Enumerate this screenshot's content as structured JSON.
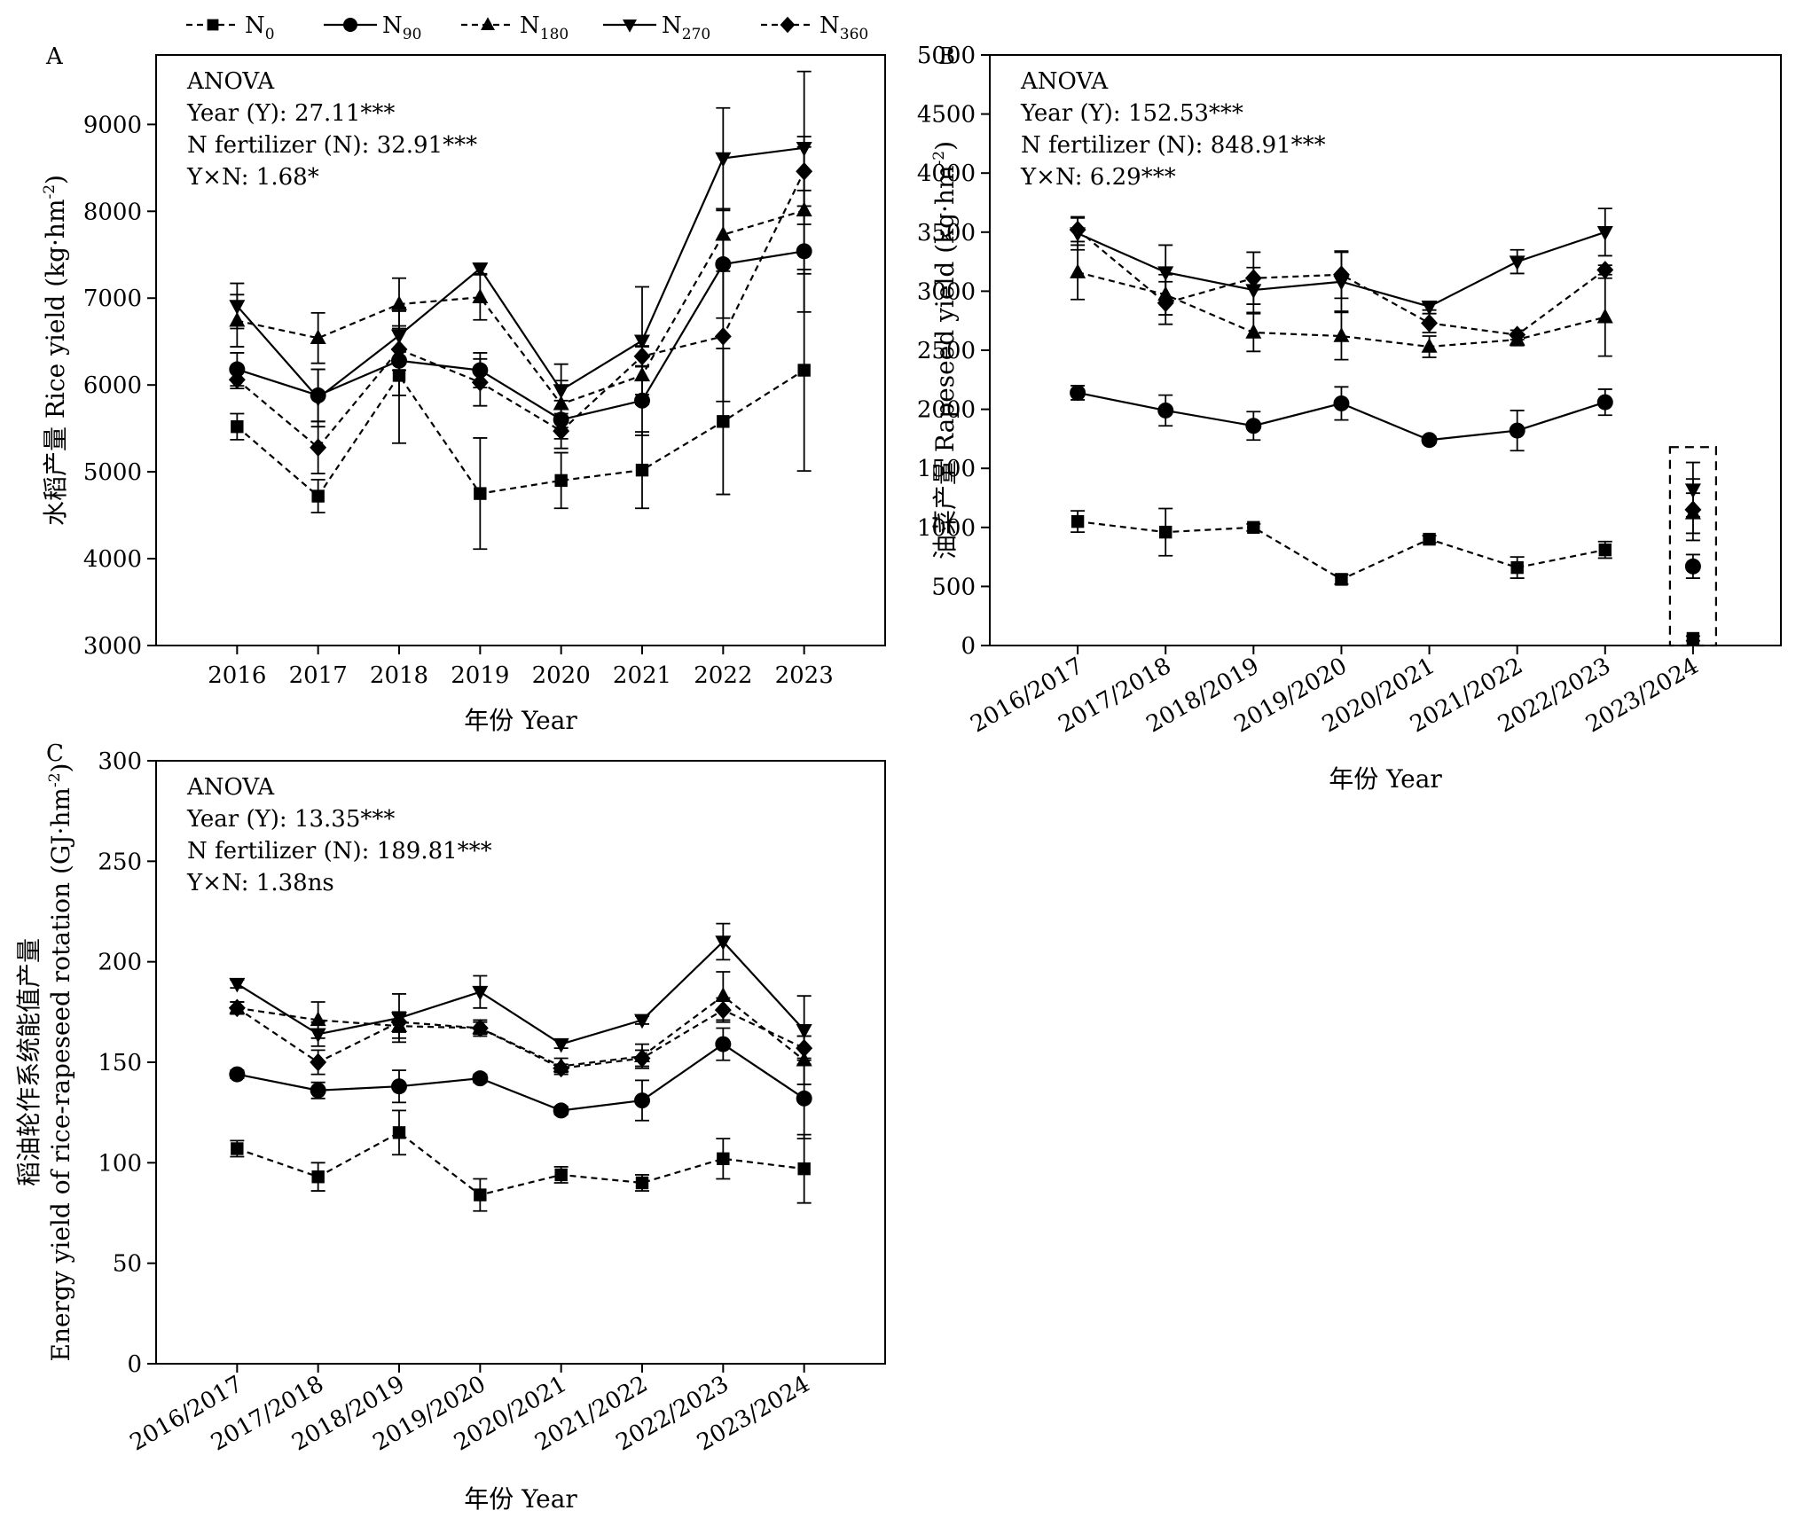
{
  "legend": {
    "items": [
      {
        "base": "N",
        "sub": "0",
        "dash": true,
        "marker": "square"
      },
      {
        "base": "N",
        "sub": "90",
        "dash": false,
        "marker": "circle"
      },
      {
        "base": "N",
        "sub": "180",
        "dash": true,
        "marker": "triangle-up"
      },
      {
        "base": "N",
        "sub": "270",
        "dash": false,
        "marker": "triangle-down"
      },
      {
        "base": "N",
        "sub": "360",
        "dash": true,
        "marker": "diamond"
      }
    ]
  },
  "chart_data": [
    {
      "type": "line",
      "panel_label": "A",
      "xlabel": "年份 Year",
      "ylabel_parts": [
        [
          "水稻产量 Rice yield (kg·hm",
          "-2",
          ")"
        ]
      ],
      "categories": [
        "2016",
        "2017",
        "2018",
        "2019",
        "2020",
        "2021",
        "2022",
        "2023"
      ],
      "tick_rotation": 0,
      "ylim": [
        3000,
        9800
      ],
      "yticks": [
        3000,
        4000,
        5000,
        6000,
        7000,
        8000,
        9000
      ],
      "anova": [
        "ANOVA",
        "Year (Y): 27.11***",
        "N fertilizer (N): 32.91***",
        "Y×N: 1.68*"
      ],
      "series": [
        {
          "name": "N0",
          "values": [
            5520,
            4720,
            6110,
            4750,
            4900,
            5020,
            5580,
            6170
          ],
          "errors": [
            150,
            190,
            780,
            640,
            320,
            440,
            840,
            1160
          ]
        },
        {
          "name": "N90",
          "values": [
            6180,
            5880,
            6280,
            6170,
            5600,
            5820,
            7390,
            7540
          ],
          "errors": [
            190,
            300,
            400,
            200,
            220,
            400,
            620,
            700
          ]
        },
        {
          "name": "N180",
          "values": [
            6740,
            6540,
            6930,
            7010,
            5780,
            6110,
            7730,
            8010
          ],
          "errors": [
            300,
            290,
            300,
            260,
            270,
            330,
            300,
            730
          ]
        },
        {
          "name": "N270",
          "values": [
            6910,
            5850,
            6570,
            7340,
            5940,
            6510,
            8610,
            8730
          ],
          "errors": [
            260,
            330,
            280,
            60,
            300,
            620,
            580,
            880
          ]
        },
        {
          "name": "N360",
          "values": [
            6060,
            5280,
            6410,
            6030,
            5470,
            6330,
            6560,
            8460
          ],
          "errors": [
            100,
            300,
            240,
            270,
            200,
            120,
            750,
            400
          ]
        }
      ]
    },
    {
      "type": "line",
      "panel_label": "B",
      "xlabel": "年份 Year",
      "ylabel_parts": [
        [
          "油菜产量 Rapeseed yield (kg·hm",
          "-2",
          ")"
        ]
      ],
      "categories": [
        "2016/2017",
        "2017/2018",
        "2018/2019",
        "2019/2020",
        "2020/2021",
        "2021/2022",
        "2022/2023",
        "2023/2024"
      ],
      "tick_rotation": -30,
      "ylim": [
        0,
        5000
      ],
      "yticks": [
        0,
        500,
        1000,
        1500,
        2000,
        2500,
        3000,
        3500,
        4000,
        4500,
        5000
      ],
      "anova": [
        "ANOVA",
        "Year (Y): 152.53***",
        "N fertilizer (N): 848.91***",
        "Y×N: 6.29***"
      ],
      "highlight_box": {
        "category": "2023/2024",
        "y_range": [
          0,
          1680
        ]
      },
      "series": [
        {
          "name": "N0",
          "values": [
            1050,
            960,
            1000,
            560,
            900,
            660,
            810,
            60
          ],
          "errors": [
            90,
            200,
            30,
            40,
            30,
            90,
            70,
            20
          ],
          "connected": 7
        },
        {
          "name": "N90",
          "values": [
            2140,
            1990,
            1860,
            2050,
            1740,
            1820,
            2060,
            670
          ],
          "errors": [
            60,
            130,
            120,
            140,
            30,
            170,
            110,
            100
          ],
          "connected": 7
        },
        {
          "name": "N180",
          "values": [
            3160,
            2970,
            2650,
            2620,
            2530,
            2590,
            2780,
            1120
          ],
          "errors": [
            230,
            170,
            160,
            200,
            90,
            50,
            330,
            170
          ],
          "connected": 7
        },
        {
          "name": "N270",
          "values": [
            3490,
            3160,
            3010,
            3080,
            2870,
            3250,
            3500,
            1320
          ],
          "errors": [
            140,
            230,
            190,
            250,
            30,
            100,
            200,
            230
          ],
          "connected": 7
        },
        {
          "name": "N360",
          "values": [
            3520,
            2900,
            3110,
            3140,
            2730,
            2630,
            3180,
            1150
          ],
          "errors": [
            100,
            180,
            220,
            200,
            80,
            40,
            40,
            260
          ],
          "connected": 7
        }
      ]
    },
    {
      "type": "line",
      "panel_label": "C",
      "xlabel": "年份 Year",
      "ylabel_parts": [
        [
          "稻油轮作系统能值产量"
        ],
        [
          "Energy yield of rice-rapeseed rotation (GJ·hm",
          "-2",
          ")"
        ]
      ],
      "categories": [
        "2016/2017",
        "2017/2018",
        "2018/2019",
        "2019/2020",
        "2020/2021",
        "2021/2022",
        "2022/2023",
        "2023/2024"
      ],
      "tick_rotation": -30,
      "ylim": [
        0,
        300
      ],
      "yticks": [
        0,
        50,
        100,
        150,
        200,
        250,
        300
      ],
      "anova": [
        "ANOVA",
        "Year (Y): 13.35***",
        "N fertilizer (N): 189.81***",
        "Y×N: 1.38ns"
      ],
      "series": [
        {
          "name": "N0",
          "values": [
            107,
            93,
            115,
            84,
            94,
            90,
            102,
            97
          ],
          "errors": [
            4,
            7,
            11,
            8,
            4,
            4,
            10,
            17
          ]
        },
        {
          "name": "N90",
          "values": [
            144,
            136,
            138,
            142,
            126,
            131,
            159,
            132
          ],
          "errors": [
            2,
            4,
            8,
            2,
            2,
            10,
            8,
            20
          ]
        },
        {
          "name": "N180",
          "values": [
            177,
            171,
            168,
            167,
            148,
            153,
            183,
            151
          ],
          "errors": [
            3,
            9,
            6,
            3,
            4,
            6,
            12,
            12
          ]
        },
        {
          "name": "N270",
          "values": [
            189,
            164,
            172,
            185,
            159,
            171,
            210,
            166
          ],
          "errors": [
            2,
            6,
            12,
            8,
            2,
            2,
            9,
            17
          ]
        },
        {
          "name": "N360",
          "values": [
            177,
            150,
            170,
            167,
            147,
            152,
            176,
            157
          ],
          "errors": [
            3,
            6,
            5,
            4,
            2,
            4,
            6,
            6
          ]
        }
      ]
    }
  ]
}
